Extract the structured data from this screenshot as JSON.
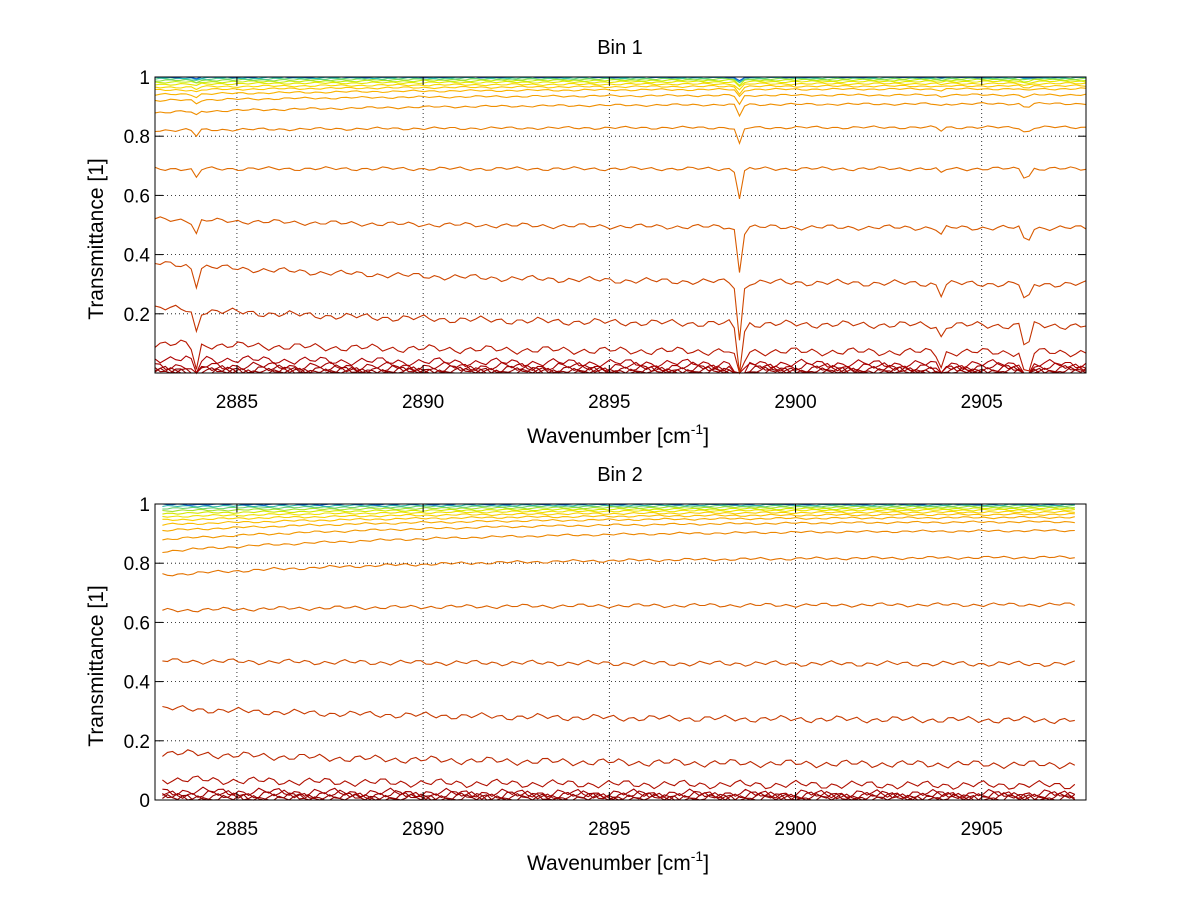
{
  "chart_data": [
    {
      "type": "line",
      "title": "Bin 1",
      "xlabel_main": "Wavenumber [cm",
      "xlabel_sup": "-1",
      "xlabel_end": "]",
      "ylabel": "Transmittance [1]",
      "xlim": [
        2882.8,
        2907.8
      ],
      "ylim": [
        0,
        1
      ],
      "xticks": [
        2885,
        2890,
        2895,
        2900,
        2905
      ],
      "xtick_labels": [
        "2885",
        "2890",
        "2895",
        "2900",
        "2905"
      ],
      "yticks": [
        0.2,
        0.4,
        0.6,
        0.8,
        1
      ],
      "ytick_labels": [
        "0.2",
        "0.4",
        "0.6",
        "0.8",
        "1"
      ],
      "grid": true,
      "grid_style": "dotted",
      "colormap": "jet",
      "x_start": 2882.8,
      "x_end": 2907.8,
      "series": [
        {
          "start": 0.003,
          "end": 0.003,
          "color": "#8b0000"
        },
        {
          "start": 0.006,
          "end": 0.006,
          "color": "#930000"
        },
        {
          "start": 0.012,
          "end": 0.012,
          "color": "#9b0000"
        },
        {
          "start": 0.025,
          "end": 0.02,
          "color": "#a40000"
        },
        {
          "start": 0.05,
          "end": 0.03,
          "color": "#ad0000"
        },
        {
          "start": 0.1,
          "end": 0.07,
          "color": "#b81800"
        },
        {
          "start": 0.22,
          "end": 0.16,
          "color": "#c43400"
        },
        {
          "start": 0.37,
          "end": 0.3,
          "color": "#cf4800"
        },
        {
          "start": 0.52,
          "end": 0.49,
          "color": "#d85a00"
        },
        {
          "start": 0.69,
          "end": 0.69,
          "color": "#e06b00"
        },
        {
          "start": 0.82,
          "end": 0.83,
          "color": "#e87c00"
        },
        {
          "start": 0.88,
          "end": 0.91,
          "color": "#ef8e00"
        },
        {
          "start": 0.92,
          "end": 0.94,
          "color": "#f5a000"
        },
        {
          "start": 0.94,
          "end": 0.96,
          "color": "#f9b300"
        },
        {
          "start": 0.955,
          "end": 0.97,
          "color": "#fbc600"
        },
        {
          "start": 0.965,
          "end": 0.978,
          "color": "#f6d800"
        },
        {
          "start": 0.975,
          "end": 0.985,
          "color": "#e6e600"
        },
        {
          "start": 0.982,
          "end": 0.99,
          "color": "#c6ec10"
        },
        {
          "start": 0.988,
          "end": 0.994,
          "color": "#95e045"
        },
        {
          "start": 0.993,
          "end": 0.997,
          "color": "#55cc88"
        },
        {
          "start": 0.997,
          "end": 0.999,
          "color": "#20b6c0"
        },
        {
          "start": 1.0,
          "end": 1.0,
          "color": "#1060d8"
        }
      ],
      "absorption_lines": [
        {
          "x": 2883.9,
          "depth": 0.015
        },
        {
          "x": 2898.5,
          "depth": 0.045
        },
        {
          "x": 2903.9,
          "depth": 0.008
        },
        {
          "x": 2906.2,
          "depth": 0.02
        }
      ]
    },
    {
      "type": "line",
      "title": "Bin 2",
      "xlabel_main": "Wavenumber [cm",
      "xlabel_sup": "-1",
      "xlabel_end": "]",
      "ylabel": "Transmittance [1]",
      "xlim": [
        2882.8,
        2907.8
      ],
      "ylim": [
        0,
        1
      ],
      "xticks": [
        2885,
        2890,
        2895,
        2900,
        2905
      ],
      "xtick_labels": [
        "2885",
        "2890",
        "2895",
        "2900",
        "2905"
      ],
      "yticks": [
        0,
        0.2,
        0.4,
        0.6,
        0.8,
        1
      ],
      "ytick_labels": [
        "0",
        "0.2",
        "0.4",
        "0.6",
        "0.8",
        "1"
      ],
      "grid": true,
      "grid_style": "dotted",
      "colormap": "jet",
      "x_start": 2883.0,
      "x_end": 2907.5,
      "series": [
        {
          "start": 0.005,
          "end": 0.005,
          "color": "#8b0000"
        },
        {
          "start": 0.01,
          "end": 0.01,
          "color": "#930000"
        },
        {
          "start": 0.02,
          "end": 0.015,
          "color": "#9b0000"
        },
        {
          "start": 0.03,
          "end": 0.02,
          "color": "#a40000"
        },
        {
          "start": 0.07,
          "end": 0.05,
          "color": "#b01000"
        },
        {
          "start": 0.16,
          "end": 0.12,
          "color": "#bc2800"
        },
        {
          "start": 0.31,
          "end": 0.27,
          "color": "#c83c00"
        },
        {
          "start": 0.47,
          "end": 0.46,
          "color": "#d25000"
        },
        {
          "start": 0.64,
          "end": 0.66,
          "color": "#db6200"
        },
        {
          "start": 0.76,
          "end": 0.82,
          "color": "#e47300"
        },
        {
          "start": 0.84,
          "end": 0.91,
          "color": "#ec8600"
        },
        {
          "start": 0.88,
          "end": 0.94,
          "color": "#f29800"
        },
        {
          "start": 0.91,
          "end": 0.955,
          "color": "#f7aa00"
        },
        {
          "start": 0.93,
          "end": 0.965,
          "color": "#fabd00"
        },
        {
          "start": 0.945,
          "end": 0.973,
          "color": "#f8d000"
        },
        {
          "start": 0.957,
          "end": 0.98,
          "color": "#eee000"
        },
        {
          "start": 0.968,
          "end": 0.985,
          "color": "#d4e800"
        },
        {
          "start": 0.977,
          "end": 0.99,
          "color": "#a8e030"
        },
        {
          "start": 0.985,
          "end": 0.994,
          "color": "#70d070"
        },
        {
          "start": 0.992,
          "end": 0.997,
          "color": "#30b8b0"
        },
        {
          "start": 0.998,
          "end": 1.0,
          "color": "#1060d8"
        }
      ],
      "absorption_lines": []
    }
  ]
}
